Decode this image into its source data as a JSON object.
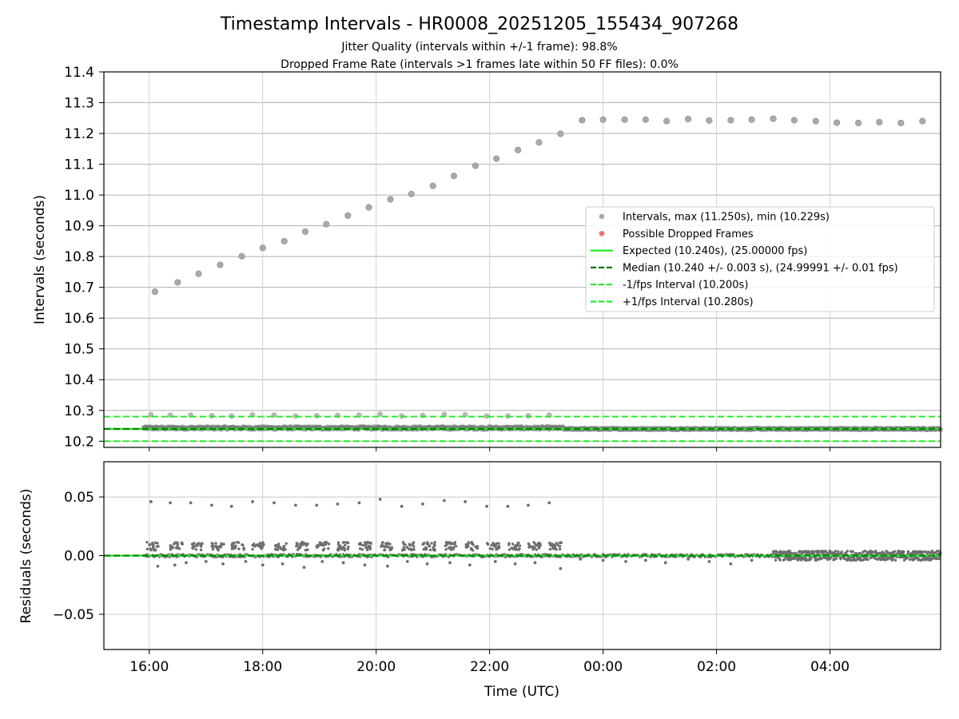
{
  "chart_data": {
    "type": "scatter",
    "title": "Timestamp Intervals - HR0008_20251205_155434_907268",
    "subtitle_lines": [
      "Jitter Quality (intervals within +/-1 frame): 98.8%",
      "Dropped Frame Rate (intervals >1 frames late within 50 FF files): 0.0%"
    ],
    "xlabel": "Time (UTC)",
    "x_ticks": [
      "16:00",
      "18:00",
      "20:00",
      "22:00",
      "00:00",
      "02:00",
      "04:00"
    ],
    "top_panel": {
      "ylabel": "Intervals (seconds)",
      "ylim": [
        10.18,
        11.4
      ],
      "y_ticks": [
        "10.2",
        "10.3",
        "10.4",
        "10.5",
        "10.6",
        "10.7",
        "10.8",
        "10.9",
        "11.0",
        "11.1",
        "11.2",
        "11.3",
        "11.4"
      ],
      "grid": true,
      "legend_position": "center-right",
      "legend": [
        {
          "label": "Intervals, max (11.250s), min (10.229s)",
          "marker": "dot",
          "color": "#a9a9a9"
        },
        {
          "label": "Possible Dropped Frames",
          "marker": "dot",
          "color": "#f07070"
        },
        {
          "label": "Expected (10.240s), (25.00000 fps)",
          "marker": "line",
          "color": "#22ee22"
        },
        {
          "label": "Median (10.240 +/- 0.003 s), (24.99991 +/- 0.01 fps)",
          "marker": "dashed",
          "color": "#117711"
        },
        {
          "label": "-1/fps Interval (10.200s)",
          "marker": "dashed",
          "color": "#22ee22"
        },
        {
          "label": "+1/fps Interval (10.280s)",
          "marker": "dashed",
          "color": "#22ee22"
        }
      ],
      "reference_lines": [
        {
          "y": 10.24,
          "style": "solid",
          "color": "#22ee22"
        },
        {
          "y": 10.24,
          "style": "dashed",
          "color": "#117711"
        },
        {
          "y": 10.2,
          "style": "dashed",
          "color": "#22ee22"
        },
        {
          "y": 10.28,
          "style": "dashed",
          "color": "#22ee22"
        }
      ],
      "large_points": {
        "hours": [
          16.1,
          16.5,
          16.87,
          17.25,
          17.63,
          18.0,
          18.38,
          18.75,
          19.12,
          19.5,
          19.87,
          20.25,
          20.62,
          21.0,
          21.37,
          21.75,
          22.12,
          22.5,
          22.87,
          23.25,
          23.63,
          24.0,
          24.38,
          24.75,
          25.12,
          25.5,
          25.87,
          26.25,
          26.62,
          27.0,
          27.37,
          27.75,
          28.12,
          28.5,
          28.87,
          29.25,
          29.63
        ],
        "values": [
          10.686,
          10.716,
          10.744,
          10.773,
          10.801,
          10.828,
          10.85,
          10.881,
          10.905,
          10.933,
          10.96,
          10.986,
          11.003,
          11.03,
          11.062,
          11.095,
          11.118,
          11.146,
          11.171,
          11.199,
          11.243,
          11.245,
          11.245,
          11.245,
          11.24,
          11.247,
          11.242,
          11.243,
          11.245,
          11.248,
          11.243,
          11.24,
          11.235,
          11.234,
          11.237,
          11.234,
          11.24
        ]
      },
      "upper_small_points": {
        "hours": [
          16.03,
          16.37,
          16.73,
          17.1,
          17.45,
          17.82,
          18.2,
          18.58,
          18.95,
          19.32,
          19.7,
          20.07,
          20.45,
          20.82,
          21.2,
          21.57,
          21.95,
          22.32,
          22.68,
          23.05
        ],
        "values": [
          10.286,
          10.285,
          10.285,
          10.283,
          10.282,
          10.286,
          10.285,
          10.282,
          10.283,
          10.284,
          10.285,
          10.288,
          10.282,
          10.284,
          10.287,
          10.286,
          10.282,
          10.282,
          10.283,
          10.285
        ]
      },
      "dense_band": [
        {
          "start": 15.9,
          "end": 23.3,
          "center": 10.243,
          "spread": 0.004
        },
        {
          "start": 23.3,
          "end": 29.95,
          "center": 10.24,
          "spread": 0.002
        }
      ]
    },
    "bottom_panel": {
      "ylabel": "Residuals (seconds)",
      "ylim": [
        -0.08,
        0.08
      ],
      "y_ticks": [
        "0.05",
        "0.00",
        "−0.05"
      ],
      "grid": true,
      "reference_lines": [
        {
          "y": 0,
          "style": "solid",
          "color": "#22ee22"
        },
        {
          "y": 0,
          "style": "dashed",
          "color": "#117711"
        }
      ],
      "high_residuals": {
        "hours": [
          16.03,
          16.37,
          16.73,
          17.1,
          17.45,
          17.82,
          18.2,
          18.58,
          18.95,
          19.32,
          19.7,
          20.07,
          20.45,
          20.82,
          21.2,
          21.57,
          21.95,
          22.32,
          22.68,
          23.05
        ],
        "values": [
          0.046,
          0.045,
          0.045,
          0.043,
          0.042,
          0.046,
          0.045,
          0.043,
          0.043,
          0.044,
          0.045,
          0.048,
          0.042,
          0.044,
          0.047,
          0.046,
          0.042,
          0.042,
          0.043,
          0.045
        ]
      },
      "low_residuals": {
        "hours": [
          16.15,
          16.45,
          16.65,
          17.0,
          17.3,
          17.7,
          18.0,
          18.35,
          18.73,
          19.05,
          19.42,
          19.8,
          20.2,
          20.55,
          20.9,
          21.3,
          21.65,
          22.1,
          22.45,
          22.8,
          23.25,
          23.6,
          24.0,
          24.4,
          24.75,
          25.1,
          25.5,
          25.87,
          26.25,
          26.62
        ],
        "values": [
          -0.009,
          -0.008,
          -0.006,
          -0.005,
          -0.007,
          -0.005,
          -0.008,
          -0.007,
          -0.01,
          -0.005,
          -0.006,
          -0.008,
          -0.009,
          -0.005,
          -0.007,
          -0.006,
          -0.008,
          -0.005,
          -0.007,
          -0.006,
          -0.011,
          -0.003,
          -0.004,
          -0.005,
          -0.004,
          -0.006,
          -0.003,
          -0.005,
          -0.007,
          -0.004
        ]
      },
      "clusters": {
        "hours": [
          15.95,
          16.37,
          16.73,
          17.1,
          17.45,
          17.82,
          18.2,
          18.58,
          18.95,
          19.32,
          19.7,
          20.07,
          20.45,
          20.82,
          21.2,
          21.57,
          21.95,
          22.32,
          22.68,
          23.05
        ],
        "value": 0.008
      },
      "noisy_band": {
        "start": 27.0,
        "end": 29.95,
        "spread": 0.004
      }
    }
  }
}
